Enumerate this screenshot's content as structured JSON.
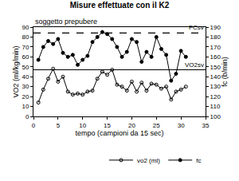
{
  "chart_data": {
    "type": "line",
    "title": "Misure effettuate con il K2",
    "subtitle": "soggetto prepubere",
    "x_label": "tempo (campioni da 15 sec)",
    "y_label": "VO2 (ml/kg/min)",
    "y2_label": "fc (b/min)",
    "xlim": [
      0,
      35
    ],
    "xticks": [
      0,
      5,
      10,
      15,
      20,
      25,
      30,
      35
    ],
    "ylim": [
      0,
      90
    ],
    "yticks": [
      0,
      10,
      20,
      30,
      40,
      50,
      60,
      70,
      80,
      90
    ],
    "y2lim": [
      100,
      190
    ],
    "y2ticks": [
      100,
      110,
      120,
      130,
      140,
      150,
      160,
      170,
      180,
      190
    ],
    "grid": false,
    "legend": "bottom-right",
    "x": [
      1,
      2,
      3,
      4,
      5,
      6,
      7,
      8,
      9,
      10,
      11,
      12,
      13,
      14,
      15,
      16,
      17,
      18,
      19,
      20,
      21,
      22,
      23,
      24,
      25,
      26,
      27,
      28,
      29,
      30,
      31
    ],
    "series": [
      {
        "name": "vo2 (ml)",
        "color": "#000000",
        "marker": "circle-open",
        "line_style": "solid",
        "axis": "y",
        "values": [
          14,
          27,
          38,
          48,
          35,
          40,
          25,
          22,
          23,
          22,
          25,
          26,
          38,
          45,
          42,
          47,
          32,
          30,
          26,
          35,
          25,
          34,
          26,
          33,
          32,
          28,
          30,
          17,
          25,
          27,
          30
        ]
      },
      {
        "name": "fc",
        "color": "#000000",
        "marker": "circle",
        "line_style": "solid",
        "axis": "y2",
        "values": [
          157,
          170,
          176,
          173,
          178,
          164,
          160,
          162,
          152,
          157,
          161,
          175,
          180,
          185,
          183,
          178,
          170,
          160,
          165,
          178,
          175,
          155,
          165,
          160,
          180,
          168,
          162,
          136,
          143,
          166,
          160
        ]
      }
    ],
    "reference_lines": [
      {
        "name": "FCsv",
        "value": 184,
        "axis": "y2",
        "color": "#000000",
        "line_style": "dash"
      },
      {
        "name": "VO2sv",
        "value": 47,
        "axis": "y",
        "color": "#000000",
        "line_style": "solid"
      }
    ]
  }
}
